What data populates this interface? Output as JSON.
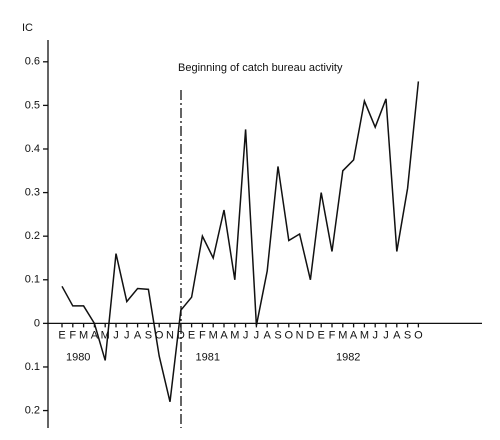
{
  "chart_data": {
    "type": "line",
    "y_label": "IC",
    "annotation": "Beginning of catch bureau activity",
    "categories": [
      "E",
      "F",
      "M",
      "A",
      "M",
      "J",
      "J",
      "A",
      "S",
      "O",
      "N",
      "D",
      "E",
      "F",
      "M",
      "A",
      "M",
      "J",
      "J",
      "A",
      "S",
      "O",
      "N",
      "D",
      "E",
      "F",
      "M",
      "A",
      "M",
      "J",
      "J",
      "A",
      "S",
      "O"
    ],
    "year_labels": [
      "1980",
      "1981",
      "1982"
    ],
    "series": [
      {
        "color": "#111111",
        "values": [
          0.085,
          0.04,
          0.04,
          0.0,
          -0.085,
          0.16,
          0.05,
          0.08,
          0.078,
          -0.075,
          -0.18,
          0.03,
          0.06,
          0.2,
          0.15,
          0.26,
          0.1,
          0.445,
          -0.005,
          0.12,
          0.36,
          0.19,
          0.205,
          0.1,
          0.3,
          0.165,
          0.35,
          0.375,
          0.51,
          0.45,
          0.515,
          0.165,
          0.31,
          0.555
        ]
      }
    ],
    "ylim": [
      -0.24,
      0.65
    ],
    "yticks": [
      0.6,
      0.5,
      0.4,
      0.3,
      0.2,
      0.1,
      0,
      {
        "value": -0.1,
        "label": "0.1"
      },
      {
        "value": -0.2,
        "label": "0.2"
      }
    ]
  }
}
